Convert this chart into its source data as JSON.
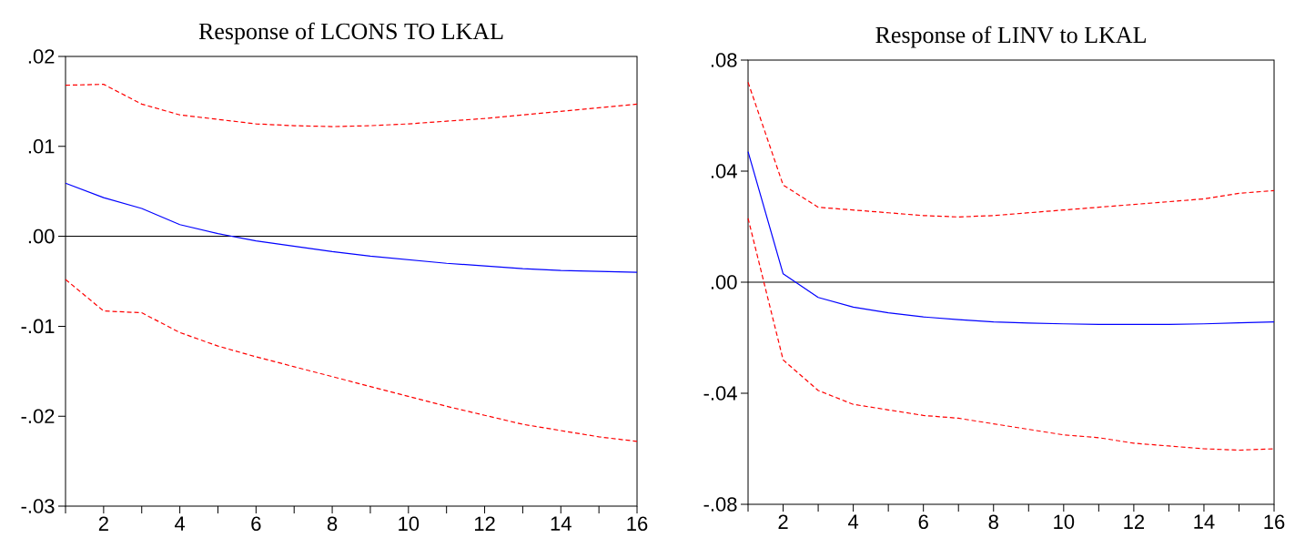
{
  "chart_data": [
    {
      "type": "line",
      "title": "Response of LCONS TO LKAL",
      "x": [
        1,
        2,
        3,
        4,
        5,
        6,
        7,
        8,
        9,
        10,
        11,
        12,
        13,
        14,
        15,
        16
      ],
      "series": [
        {
          "color": "#0000ff",
          "line_style": "solid",
          "values": [
            0.0059,
            0.0043,
            0.0031,
            0.0013,
            0.0003,
            -0.0005,
            -0.0011,
            -0.0017,
            -0.0022,
            -0.0026,
            -0.003,
            -0.0033,
            -0.0036,
            -0.0038,
            -0.0039,
            -0.004
          ]
        },
        {
          "color": "#ff0000",
          "line_style": "dashed",
          "values": [
            0.0168,
            0.0169,
            0.0147,
            0.0135,
            0.013,
            0.0125,
            0.0123,
            0.0122,
            0.0123,
            0.0125,
            0.0128,
            0.0131,
            0.0135,
            0.0139,
            0.0143,
            0.0147
          ]
        },
        {
          "color": "#ff0000",
          "line_style": "dashed",
          "values": [
            -0.0048,
            -0.0083,
            -0.0085,
            -0.0107,
            -0.0122,
            -0.0134,
            -0.0145,
            -0.0156,
            -0.0167,
            -0.0178,
            -0.0189,
            -0.0199,
            -0.0209,
            -0.0216,
            -0.0223,
            -0.0228
          ]
        }
      ],
      "xlim": [
        1,
        16
      ],
      "xticks": [
        {
          "value": 1,
          "label": null
        },
        2,
        {
          "value": 3,
          "label": null
        },
        4,
        {
          "value": 5,
          "label": null
        },
        6,
        {
          "value": 7,
          "label": null
        },
        8,
        {
          "value": 9,
          "label": null
        },
        10,
        {
          "value": 11,
          "label": null
        },
        12,
        {
          "value": 13,
          "label": null
        },
        14,
        {
          "value": 15,
          "label": null
        },
        16
      ],
      "ylim": [
        -0.03,
        0.02
      ],
      "yticks": [
        {
          "value": -0.03,
          "label": "-.03"
        },
        {
          "value": -0.02,
          "label": "-.02"
        },
        {
          "value": -0.01,
          "label": "-.01"
        },
        {
          "value": 0,
          "label": ".00"
        },
        {
          "value": 0.01,
          "label": ".01"
        },
        {
          "value": 0.02,
          "label": ".02"
        }
      ],
      "ref_lines": [
        {
          "axis": "y",
          "value": 0,
          "color": "#000000"
        }
      ]
    },
    {
      "type": "line",
      "title": "Response of LINV to LKAL",
      "x": [
        1,
        2,
        3,
        4,
        5,
        6,
        7,
        8,
        9,
        10,
        11,
        12,
        13,
        14,
        15,
        16
      ],
      "series": [
        {
          "color": "#0000ff",
          "line_style": "solid",
          "values": [
            0.047,
            0.003,
            -0.0055,
            -0.009,
            -0.011,
            -0.0125,
            -0.0135,
            -0.0143,
            -0.0147,
            -0.015,
            -0.0152,
            -0.0152,
            -0.0152,
            -0.015,
            -0.0146,
            -0.0143
          ]
        },
        {
          "color": "#ff0000",
          "line_style": "dashed",
          "values": [
            0.072,
            0.035,
            0.027,
            0.026,
            0.025,
            0.024,
            0.0235,
            0.024,
            0.025,
            0.026,
            0.027,
            0.028,
            0.029,
            0.03,
            0.032,
            0.033
          ]
        },
        {
          "color": "#ff0000",
          "line_style": "dashed",
          "values": [
            0.023,
            -0.028,
            -0.039,
            -0.044,
            -0.046,
            -0.048,
            -0.049,
            -0.051,
            -0.053,
            -0.055,
            -0.056,
            -0.058,
            -0.059,
            -0.06,
            -0.0605,
            -0.06
          ]
        }
      ],
      "xlim": [
        1,
        16
      ],
      "xticks": [
        {
          "value": 1,
          "label": null
        },
        2,
        {
          "value": 3,
          "label": null
        },
        4,
        {
          "value": 5,
          "label": null
        },
        6,
        {
          "value": 7,
          "label": null
        },
        8,
        {
          "value": 9,
          "label": null
        },
        10,
        {
          "value": 11,
          "label": null
        },
        12,
        {
          "value": 13,
          "label": null
        },
        14,
        {
          "value": 15,
          "label": null
        },
        16
      ],
      "ylim": [
        -0.08,
        0.08
      ],
      "yticks": [
        {
          "value": -0.08,
          "label": "-.08"
        },
        {
          "value": -0.04,
          "label": "-.04"
        },
        {
          "value": 0,
          "label": ".00"
        },
        {
          "value": 0.04,
          "label": ".04"
        },
        {
          "value": 0.08,
          "label": ".08"
        }
      ],
      "ref_lines": [
        {
          "axis": "y",
          "value": 0,
          "color": "#000000"
        }
      ]
    }
  ]
}
